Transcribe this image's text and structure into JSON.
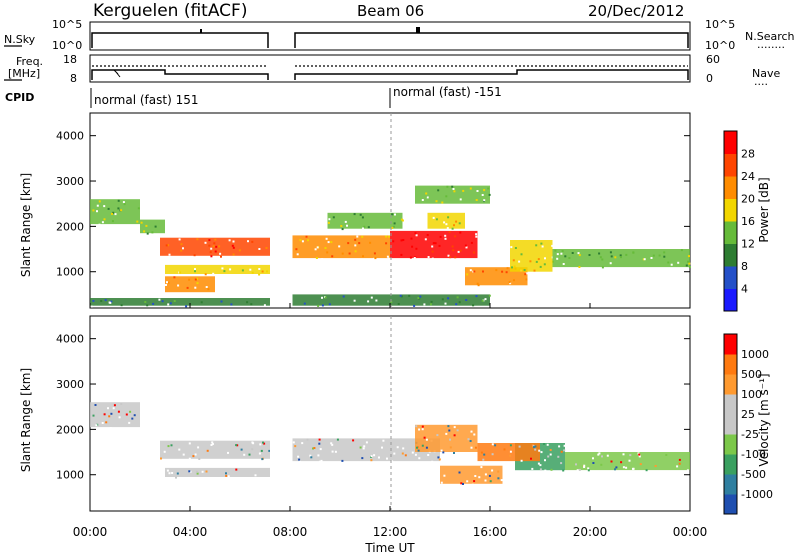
{
  "header": {
    "station": "Kerguelen (fitACF)",
    "beam": "Beam 06",
    "date": "20/Dec/2012"
  },
  "panels": {
    "nsky": {
      "label": "N.Sky",
      "ticks_left": [
        "10^5",
        "10^0"
      ],
      "ticks_right": [
        "10^5",
        "10^0"
      ],
      "right_label": "N.Search",
      "right_legend": "........"
    },
    "freq": {
      "label_line1": "Freq.",
      "label_line2": "[MHz]",
      "ticks_left": [
        "18",
        "8"
      ],
      "ticks_right": [
        "60",
        "0"
      ],
      "right_label": "Nave",
      "right_legend": "...."
    },
    "cpid": {
      "label": "CPID",
      "entries": [
        {
          "time": "00:00",
          "text": "normal (fast) 151"
        },
        {
          "time": "12:00",
          "text": "normal (fast) -151"
        }
      ]
    }
  },
  "chart_data": [
    {
      "type": "heatmap",
      "name": "power",
      "ylabel": "Slant Range [km]",
      "ylim": [
        200,
        4500
      ],
      "yticks": [
        "4000",
        "3000",
        "2000",
        "1000"
      ],
      "ytick_values": [
        4000,
        3000,
        2000,
        1000
      ],
      "xlim_hours": [
        0,
        24
      ],
      "data_gap_hours": [
        7.2,
        8.1
      ],
      "colorbar": {
        "label": "Power [dB]",
        "ticks": [
          "28",
          "24",
          "20",
          "16",
          "12",
          "8",
          "4"
        ],
        "colors": [
          "#1a1aff",
          "#2450c8",
          "#2e7d32",
          "#66bb3a",
          "#f2d600",
          "#ff8c00",
          "#ff4500",
          "#ff0000"
        ]
      },
      "regions": [
        {
          "t": [
            0.0,
            2.0
          ],
          "r": [
            2050,
            2600
          ],
          "level": 12
        },
        {
          "t": [
            2.0,
            3.0
          ],
          "r": [
            1850,
            2150
          ],
          "level": 12
        },
        {
          "t": [
            2.8,
            7.2
          ],
          "r": [
            1350,
            1750
          ],
          "level": 22
        },
        {
          "t": [
            3.0,
            7.2
          ],
          "r": [
            950,
            1150
          ],
          "level": 16
        },
        {
          "t": [
            3.0,
            5.0
          ],
          "r": [
            550,
            900
          ],
          "level": 20
        },
        {
          "t": [
            0.0,
            7.2
          ],
          "r": [
            250,
            420
          ],
          "level": 8
        },
        {
          "t": [
            8.1,
            12.0
          ],
          "r": [
            1300,
            1800
          ],
          "level": 20
        },
        {
          "t": [
            12.0,
            15.5
          ],
          "r": [
            1300,
            1900
          ],
          "level": 26
        },
        {
          "t": [
            13.5,
            15.0
          ],
          "r": [
            1950,
            2300
          ],
          "level": 14
        },
        {
          "t": [
            9.5,
            12.5
          ],
          "r": [
            1950,
            2300
          ],
          "level": 10
        },
        {
          "t": [
            13.0,
            16.0
          ],
          "r": [
            2500,
            2900
          ],
          "level": 10
        },
        {
          "t": [
            15.0,
            17.5
          ],
          "r": [
            700,
            1100
          ],
          "level": 18
        },
        {
          "t": [
            16.8,
            18.5
          ],
          "r": [
            1000,
            1700
          ],
          "level": 14
        },
        {
          "t": [
            18.5,
            24.0
          ],
          "r": [
            1100,
            1500
          ],
          "level": 12
        },
        {
          "t": [
            8.1,
            16.0
          ],
          "r": [
            250,
            500
          ],
          "level": 8
        }
      ]
    },
    {
      "type": "heatmap",
      "name": "velocity",
      "ylabel": "Slant Range [km]",
      "ylim": [
        200,
        4500
      ],
      "yticks": [
        "4000",
        "3000",
        "2000",
        "1000"
      ],
      "ytick_values": [
        4000,
        3000,
        2000,
        1000
      ],
      "xlim_hours": [
        0,
        24
      ],
      "xticks": [
        "00:00",
        "04:00",
        "08:00",
        "12:00",
        "16:00",
        "20:00",
        "00:00"
      ],
      "xlabel": "Time UT",
      "data_gap_hours": [
        7.2,
        8.1
      ],
      "colorbar": {
        "label": "Velocity [m s⁻¹]",
        "ticks": [
          "1000",
          "500",
          "100",
          "25",
          "-25",
          "-100",
          "-500",
          "-1000"
        ],
        "colors": [
          "#1f4fb0",
          "#2f7fa0",
          "#3aa060",
          "#7cc84a",
          "#c8c8c8",
          "#c8c8c8",
          "#ff9a30",
          "#ff7a10",
          "#ff0000"
        ]
      },
      "regions": [
        {
          "t": [
            0.0,
            2.0
          ],
          "r": [
            2050,
            2600
          ],
          "color": "#c8c8c8"
        },
        {
          "t": [
            2.8,
            7.2
          ],
          "r": [
            1350,
            1750
          ],
          "color": "#c8c8c8"
        },
        {
          "t": [
            3.0,
            7.2
          ],
          "r": [
            950,
            1150
          ],
          "color": "#c8c8c8"
        },
        {
          "t": [
            8.1,
            12.0
          ],
          "r": [
            1300,
            1800
          ],
          "color": "#c8c8c8"
        },
        {
          "t": [
            12.0,
            14.0
          ],
          "r": [
            1300,
            1800
          ],
          "color": "#c8c8c8"
        },
        {
          "t": [
            13.0,
            15.5
          ],
          "r": [
            1500,
            2100
          ],
          "color": "#ff9a30"
        },
        {
          "t": [
            14.0,
            16.5
          ],
          "r": [
            800,
            1200
          ],
          "color": "#ff9a30"
        },
        {
          "t": [
            17.0,
            19.0
          ],
          "r": [
            1100,
            1700
          ],
          "color": "#3aa060"
        },
        {
          "t": [
            19.0,
            24.0
          ],
          "r": [
            1100,
            1500
          ],
          "color": "#7cc84a"
        },
        {
          "t": [
            15.5,
            18.0
          ],
          "r": [
            1300,
            1700
          ],
          "color": "#ff7a10"
        }
      ]
    }
  ]
}
